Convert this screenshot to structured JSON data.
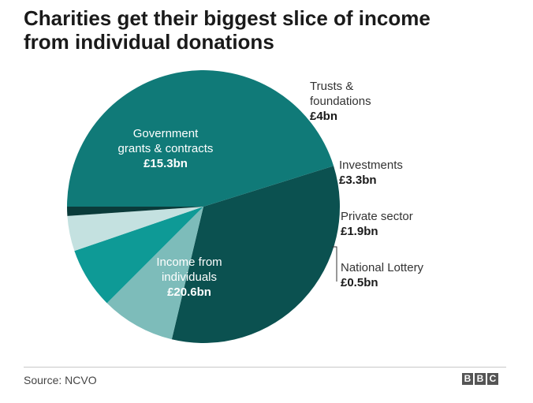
{
  "header": {
    "title_line1": "Charities get their biggest slice of income",
    "title_line2": "from individual donations"
  },
  "chart_data": {
    "type": "pie",
    "title": "Charities get their biggest slice of income from individual donations",
    "unit": "£bn",
    "slices": [
      {
        "label": "Government grants & contracts",
        "value": 15.3,
        "display": "£15.3bn",
        "color": "#0b5150"
      },
      {
        "label": "Trusts & foundations",
        "value": 4.0,
        "display": "£4bn",
        "color": "#7dbcba"
      },
      {
        "label": "Investments",
        "value": 3.3,
        "display": "£3.3bn",
        "color": "#0e9a96"
      },
      {
        "label": "Private sector",
        "value": 1.9,
        "display": "£1.9bn",
        "color": "#c4e1e0"
      },
      {
        "label": "National Lottery",
        "value": 0.5,
        "display": "£0.5bn",
        "color": "#0a3b3a"
      },
      {
        "label": "Income from individuals",
        "value": 20.6,
        "display": "£20.6bn",
        "color": "#107a78"
      }
    ],
    "legend": "none"
  },
  "labels": {
    "government": {
      "name": "Government\ngrants & contracts",
      "value": "£15.3bn"
    },
    "trusts": {
      "name": "Trusts &\nfoundations",
      "value": "£4bn"
    },
    "investments": {
      "name": "Investments",
      "value": "£3.3bn"
    },
    "private": {
      "name": "Private sector",
      "value": "£1.9bn"
    },
    "lottery": {
      "name": "National Lottery",
      "value": "£0.5bn"
    },
    "individuals": {
      "name": "Income from\nindividuals",
      "value": "£20.6bn"
    }
  },
  "footer": {
    "source": "Source: NCVO",
    "logo_letters": [
      "B",
      "B",
      "C"
    ]
  }
}
